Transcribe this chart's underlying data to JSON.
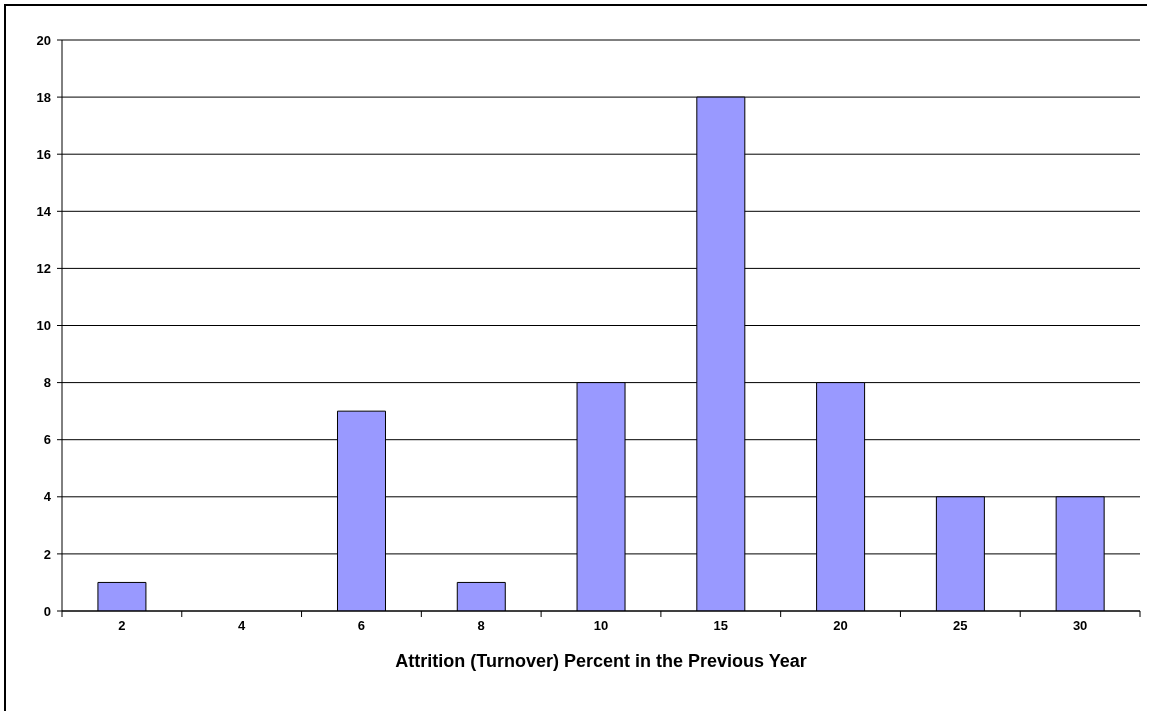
{
  "chart_data": {
    "type": "bar",
    "xlabel": "Attrition (Turnover) Percent in the Previous Year",
    "categories": [
      "2",
      "4",
      "6",
      "8",
      "10",
      "15",
      "20",
      "25",
      "30"
    ],
    "values": [
      1,
      0,
      7,
      1,
      8,
      18,
      8,
      4,
      4
    ],
    "color": "#9999ff",
    "ylim": [
      0,
      20
    ],
    "yticks": [
      0,
      2,
      4,
      6,
      8,
      10,
      12,
      14,
      16,
      18,
      20
    ],
    "grid": "y"
  }
}
